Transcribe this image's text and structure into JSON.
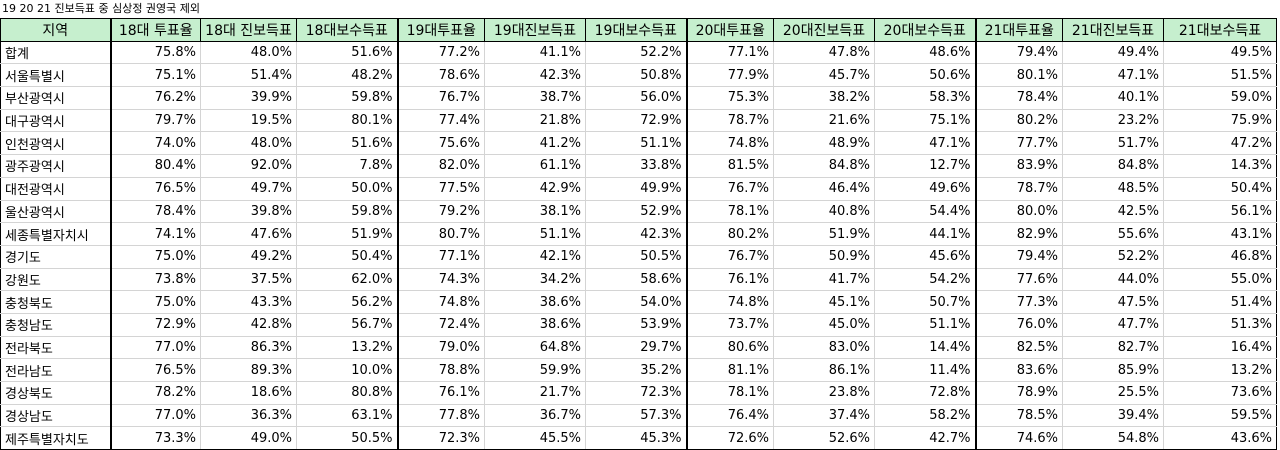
{
  "title": "19 20 21 진보득표 중 심상정 권영국 제외",
  "headers": [
    "지역",
    "18대 투표율",
    "18대 진보득표",
    "18대보수득표",
    "19대투표율",
    "19대진보득표",
    "19대보수득표",
    "20대투표율",
    "20대진보득표",
    "20대보수득표",
    "21대투표율",
    "21대진보득표",
    "21대보수득표"
  ],
  "rows": [
    {
      "region": "합계",
      "values": [
        "75.8%",
        "48.0%",
        "51.6%",
        "77.2%",
        "41.1%",
        "52.2%",
        "77.1%",
        "47.8%",
        "48.6%",
        "79.4%",
        "49.4%",
        "49.5%"
      ]
    },
    {
      "region": "서울특별시",
      "values": [
        "75.1%",
        "51.4%",
        "48.2%",
        "78.6%",
        "42.3%",
        "50.8%",
        "77.9%",
        "45.7%",
        "50.6%",
        "80.1%",
        "47.1%",
        "51.5%"
      ]
    },
    {
      "region": "부산광역시",
      "values": [
        "76.2%",
        "39.9%",
        "59.8%",
        "76.7%",
        "38.7%",
        "56.0%",
        "75.3%",
        "38.2%",
        "58.3%",
        "78.4%",
        "40.1%",
        "59.0%"
      ]
    },
    {
      "region": "대구광역시",
      "values": [
        "79.7%",
        "19.5%",
        "80.1%",
        "77.4%",
        "21.8%",
        "72.9%",
        "78.7%",
        "21.6%",
        "75.1%",
        "80.2%",
        "23.2%",
        "75.9%"
      ]
    },
    {
      "region": "인천광역시",
      "values": [
        "74.0%",
        "48.0%",
        "51.6%",
        "75.6%",
        "41.2%",
        "51.1%",
        "74.8%",
        "48.9%",
        "47.1%",
        "77.7%",
        "51.7%",
        "47.2%"
      ]
    },
    {
      "region": "광주광역시",
      "values": [
        "80.4%",
        "92.0%",
        "7.8%",
        "82.0%",
        "61.1%",
        "33.8%",
        "81.5%",
        "84.8%",
        "12.7%",
        "83.9%",
        "84.8%",
        "14.3%"
      ]
    },
    {
      "region": "대전광역시",
      "values": [
        "76.5%",
        "49.7%",
        "50.0%",
        "77.5%",
        "42.9%",
        "49.9%",
        "76.7%",
        "46.4%",
        "49.6%",
        "78.7%",
        "48.5%",
        "50.4%"
      ]
    },
    {
      "region": "울산광역시",
      "values": [
        "78.4%",
        "39.8%",
        "59.8%",
        "79.2%",
        "38.1%",
        "52.9%",
        "78.1%",
        "40.8%",
        "54.4%",
        "80.0%",
        "42.5%",
        "56.1%"
      ]
    },
    {
      "region": "세종특별자치시",
      "values": [
        "74.1%",
        "47.6%",
        "51.9%",
        "80.7%",
        "51.1%",
        "42.3%",
        "80.2%",
        "51.9%",
        "44.1%",
        "82.9%",
        "55.6%",
        "43.1%"
      ]
    },
    {
      "region": "경기도",
      "values": [
        "75.0%",
        "49.2%",
        "50.4%",
        "77.1%",
        "42.1%",
        "50.5%",
        "76.7%",
        "50.9%",
        "45.6%",
        "79.4%",
        "52.2%",
        "46.8%"
      ]
    },
    {
      "region": "강원도",
      "values": [
        "73.8%",
        "37.5%",
        "62.0%",
        "74.3%",
        "34.2%",
        "58.6%",
        "76.1%",
        "41.7%",
        "54.2%",
        "77.6%",
        "44.0%",
        "55.0%"
      ]
    },
    {
      "region": "충청북도",
      "values": [
        "75.0%",
        "43.3%",
        "56.2%",
        "74.8%",
        "38.6%",
        "54.0%",
        "74.8%",
        "45.1%",
        "50.7%",
        "77.3%",
        "47.5%",
        "51.4%"
      ]
    },
    {
      "region": "충청남도",
      "values": [
        "72.9%",
        "42.8%",
        "56.7%",
        "72.4%",
        "38.6%",
        "53.9%",
        "73.7%",
        "45.0%",
        "51.1%",
        "76.0%",
        "47.7%",
        "51.3%"
      ]
    },
    {
      "region": "전라북도",
      "values": [
        "77.0%",
        "86.3%",
        "13.2%",
        "79.0%",
        "64.8%",
        "29.7%",
        "80.6%",
        "83.0%",
        "14.4%",
        "82.5%",
        "82.7%",
        "16.4%"
      ]
    },
    {
      "region": "전라남도",
      "values": [
        "76.5%",
        "89.3%",
        "10.0%",
        "78.8%",
        "59.9%",
        "35.2%",
        "81.1%",
        "86.1%",
        "11.4%",
        "83.6%",
        "85.9%",
        "13.2%"
      ]
    },
    {
      "region": "경상북도",
      "values": [
        "78.2%",
        "18.6%",
        "80.8%",
        "76.1%",
        "21.7%",
        "72.3%",
        "78.1%",
        "23.8%",
        "72.8%",
        "78.9%",
        "25.5%",
        "73.6%"
      ]
    },
    {
      "region": "경상남도",
      "values": [
        "77.0%",
        "36.3%",
        "63.1%",
        "77.8%",
        "36.7%",
        "57.3%",
        "76.4%",
        "37.4%",
        "58.2%",
        "78.5%",
        "39.4%",
        "59.5%"
      ]
    },
    {
      "region": "제주특별자치도",
      "values": [
        "73.3%",
        "49.0%",
        "50.5%",
        "72.3%",
        "45.5%",
        "45.3%",
        "72.6%",
        "52.6%",
        "42.7%",
        "74.6%",
        "54.8%",
        "43.6%"
      ]
    }
  ]
}
